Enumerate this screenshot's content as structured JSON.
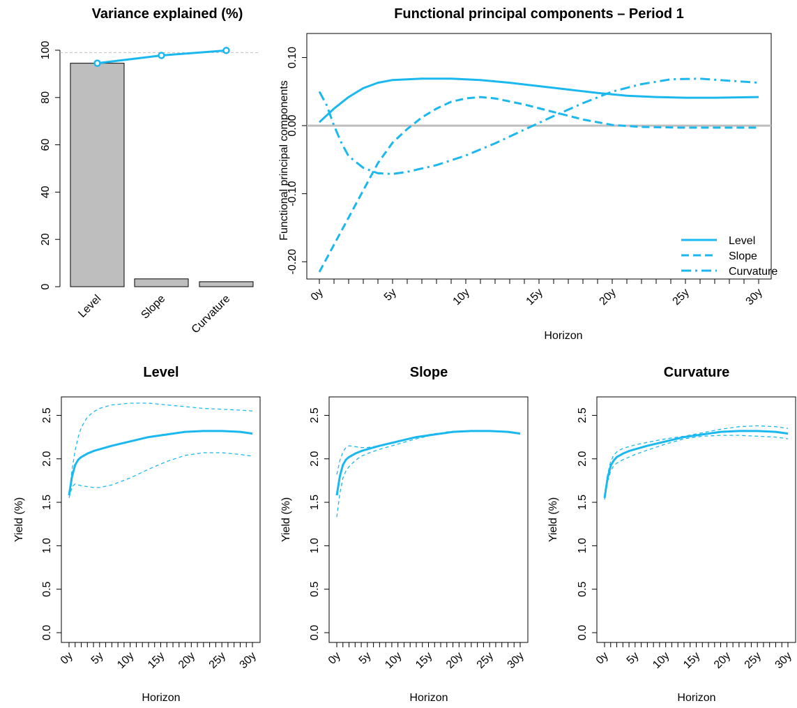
{
  "colors": {
    "accent": "#1ab8ee",
    "bar": "#bebebe",
    "zero": "#bebebe"
  },
  "chart_data": [
    {
      "id": "variance",
      "type": "bar",
      "title": "Variance explained (%)",
      "categories": [
        "Level",
        "Slope",
        "Curvature"
      ],
      "values": [
        94.5,
        3.3,
        2.1
      ],
      "cumulative": [
        94.5,
        97.8,
        99.9
      ],
      "reference_line": 99,
      "ylim": [
        0,
        100
      ],
      "yticks": [
        0,
        20,
        40,
        60,
        80,
        100
      ],
      "ytick_labels": [
        "0",
        "20",
        "40",
        "60",
        "80",
        "100"
      ],
      "grid": false
    },
    {
      "id": "fpc",
      "type": "line",
      "title": "Functional principal components – Period 1",
      "xlabel": "Horizon",
      "ylabel": "Functional principal components",
      "xlim": [
        0,
        30
      ],
      "ylim": [
        -0.21,
        0.12
      ],
      "xticks": [
        0,
        5,
        10,
        15,
        20,
        25,
        30
      ],
      "xtick_labels": [
        "0y",
        "5y",
        "10y",
        "15y",
        "20y",
        "25y",
        "30y"
      ],
      "minor_xticks": 1,
      "yticks": [
        -0.2,
        -0.1,
        0.0,
        0.1
      ],
      "ytick_labels": [
        "-0.20",
        "-0.10",
        "0.00",
        "0.10"
      ],
      "legend_position": "bottom-right",
      "zero_line": true,
      "series": [
        {
          "name": "Level",
          "dash": "solid",
          "x": [
            0,
            1,
            2,
            3,
            4,
            5,
            7,
            9,
            11,
            13,
            15,
            17,
            19,
            21,
            23,
            25,
            27,
            30
          ],
          "y": [
            0.005,
            0.025,
            0.042,
            0.055,
            0.063,
            0.067,
            0.069,
            0.069,
            0.067,
            0.063,
            0.058,
            0.053,
            0.048,
            0.044,
            0.042,
            0.041,
            0.041,
            0.042
          ]
        },
        {
          "name": "Slope",
          "dash": "dashed",
          "x": [
            0,
            1,
            2,
            3,
            4,
            5,
            6,
            7,
            8,
            9,
            10,
            11,
            12,
            14,
            16,
            18,
            20,
            22,
            25,
            28,
            30
          ],
          "y": [
            -0.215,
            -0.175,
            -0.135,
            -0.095,
            -0.055,
            -0.025,
            -0.005,
            0.012,
            0.025,
            0.035,
            0.04,
            0.042,
            0.04,
            0.031,
            0.02,
            0.009,
            0.001,
            -0.002,
            -0.003,
            -0.003,
            -0.003
          ]
        },
        {
          "name": "Curvature",
          "dash": "dashdot",
          "x": [
            0,
            0.5,
            1,
            1.5,
            2,
            3,
            4,
            5,
            6,
            8,
            10,
            12,
            14,
            16,
            18,
            20,
            22,
            24,
            26,
            28,
            30
          ],
          "y": [
            0.05,
            0.03,
            0.0,
            -0.025,
            -0.045,
            -0.062,
            -0.07,
            -0.071,
            -0.068,
            -0.058,
            -0.044,
            -0.026,
            -0.006,
            0.014,
            0.033,
            0.05,
            0.061,
            0.068,
            0.069,
            0.066,
            0.063
          ]
        }
      ]
    },
    {
      "id": "level",
      "type": "line",
      "title": "Level",
      "xlabel": "Horizon",
      "ylabel": "Yield (%)",
      "xlim": [
        0,
        30
      ],
      "ylim": [
        0,
        2.6
      ],
      "xticks": [
        0,
        5,
        10,
        15,
        20,
        25,
        30
      ],
      "xtick_labels": [
        "0y",
        "5y",
        "10y",
        "15y",
        "20y",
        "25y",
        "30y"
      ],
      "minor_xticks": 1,
      "yticks": [
        0,
        0.5,
        1.0,
        1.5,
        2.0,
        2.5
      ],
      "ytick_labels": [
        "0.0",
        "0.5",
        "1.0",
        "1.5",
        "2.0",
        "2.5"
      ],
      "series": [
        {
          "role": "mean",
          "dash": "solid",
          "x": [
            0,
            0.5,
            1,
            1.5,
            2,
            3,
            4,
            5,
            7,
            10,
            13,
            16,
            19,
            22,
            25,
            28,
            30
          ],
          "y": [
            1.58,
            1.8,
            1.93,
            1.99,
            2.02,
            2.06,
            2.09,
            2.11,
            2.15,
            2.2,
            2.25,
            2.28,
            2.31,
            2.32,
            2.32,
            2.31,
            2.29
          ]
        },
        {
          "role": "upper",
          "dash": "thin-dashed",
          "x": [
            0,
            0.5,
            1,
            1.5,
            2,
            3,
            4,
            5,
            7,
            10,
            13,
            16,
            19,
            22,
            25,
            28,
            30
          ],
          "y": [
            1.6,
            1.88,
            2.1,
            2.25,
            2.36,
            2.48,
            2.54,
            2.58,
            2.62,
            2.64,
            2.64,
            2.62,
            2.6,
            2.58,
            2.57,
            2.56,
            2.55
          ]
        },
        {
          "role": "lower",
          "dash": "thin-dashed",
          "x": [
            0,
            0.5,
            1,
            1.5,
            2,
            3,
            4,
            5,
            7,
            10,
            13,
            16,
            19,
            22,
            25,
            28,
            30
          ],
          "y": [
            1.55,
            1.68,
            1.71,
            1.7,
            1.69,
            1.68,
            1.67,
            1.67,
            1.7,
            1.78,
            1.88,
            1.97,
            2.04,
            2.07,
            2.07,
            2.05,
            2.03
          ]
        }
      ]
    },
    {
      "id": "slope",
      "type": "line",
      "title": "Slope",
      "xlabel": "Horizon",
      "ylabel": "Yield (%)",
      "xlim": [
        0,
        30
      ],
      "ylim": [
        0,
        2.6
      ],
      "xticks": [
        0,
        5,
        10,
        15,
        20,
        25,
        30
      ],
      "xtick_labels": [
        "0y",
        "5y",
        "10y",
        "15y",
        "20y",
        "25y",
        "30y"
      ],
      "minor_xticks": 1,
      "yticks": [
        0,
        0.5,
        1.0,
        1.5,
        2.0,
        2.5
      ],
      "ytick_labels": [
        "0.0",
        "0.5",
        "1.0",
        "1.5",
        "2.0",
        "2.5"
      ],
      "series": [
        {
          "role": "mean",
          "dash": "solid",
          "x": [
            0,
            0.5,
            1,
            1.5,
            2,
            3,
            4,
            5,
            7,
            10,
            13,
            16,
            19,
            22,
            25,
            28,
            30
          ],
          "y": [
            1.58,
            1.8,
            1.93,
            1.99,
            2.02,
            2.06,
            2.09,
            2.11,
            2.15,
            2.2,
            2.25,
            2.28,
            2.31,
            2.32,
            2.32,
            2.31,
            2.29
          ]
        },
        {
          "role": "upper",
          "dash": "thin-dashed",
          "x": [
            0,
            0.5,
            1,
            1.5,
            2,
            3,
            4,
            5,
            7,
            10,
            13,
            16,
            18,
            20,
            22,
            25,
            28,
            30
          ],
          "y": [
            1.82,
            1.98,
            2.08,
            2.13,
            2.15,
            2.14,
            2.13,
            2.13,
            2.15,
            2.2,
            2.25,
            2.29,
            2.3,
            2.31,
            2.32,
            2.32,
            2.31,
            2.29
          ]
        },
        {
          "role": "lower",
          "dash": "thin-dashed",
          "x": [
            0,
            0.5,
            1,
            1.5,
            2,
            3,
            4,
            5,
            7,
            10,
            13,
            16,
            18,
            20,
            22,
            25,
            28,
            30
          ],
          "y": [
            1.33,
            1.6,
            1.78,
            1.86,
            1.91,
            1.98,
            2.03,
            2.06,
            2.11,
            2.17,
            2.23,
            2.28,
            2.31,
            2.32,
            2.32,
            2.32,
            2.31,
            2.29
          ]
        }
      ]
    },
    {
      "id": "curvature",
      "type": "line",
      "title": "Curvature",
      "xlabel": "Horizon",
      "ylabel": "Yield (%)",
      "xlim": [
        0,
        30
      ],
      "ylim": [
        0,
        2.6
      ],
      "xticks": [
        0,
        5,
        10,
        15,
        20,
        25,
        30
      ],
      "xtick_labels": [
        "0y",
        "5y",
        "10y",
        "15y",
        "20y",
        "25y",
        "30y"
      ],
      "minor_xticks": 1,
      "yticks": [
        0,
        0.5,
        1.0,
        1.5,
        2.0,
        2.5
      ],
      "ytick_labels": [
        "0.0",
        "0.5",
        "1.0",
        "1.5",
        "2.0",
        "2.5"
      ],
      "series": [
        {
          "role": "mean",
          "dash": "solid",
          "x": [
            0,
            0.5,
            1,
            1.5,
            2,
            3,
            4,
            5,
            7,
            10,
            13,
            16,
            19,
            22,
            25,
            28,
            30
          ],
          "y": [
            1.55,
            1.78,
            1.92,
            1.98,
            2.02,
            2.06,
            2.09,
            2.11,
            2.15,
            2.2,
            2.25,
            2.28,
            2.31,
            2.32,
            2.32,
            2.31,
            2.29
          ]
        },
        {
          "role": "upper",
          "dash": "thin-dashed",
          "x": [
            0,
            0.5,
            1,
            1.5,
            2,
            3,
            4,
            5,
            7,
            10,
            13,
            16,
            19,
            22,
            25,
            28,
            30
          ],
          "y": [
            1.57,
            1.82,
            1.97,
            2.04,
            2.08,
            2.12,
            2.14,
            2.16,
            2.19,
            2.23,
            2.26,
            2.3,
            2.34,
            2.37,
            2.38,
            2.37,
            2.35
          ]
        },
        {
          "role": "lower",
          "dash": "thin-dashed",
          "x": [
            0,
            0.5,
            1,
            1.5,
            2,
            3,
            4,
            5,
            7,
            10,
            13,
            16,
            19,
            22,
            25,
            28,
            30
          ],
          "y": [
            1.53,
            1.74,
            1.86,
            1.92,
            1.95,
            1.99,
            2.02,
            2.05,
            2.1,
            2.17,
            2.23,
            2.26,
            2.27,
            2.27,
            2.26,
            2.25,
            2.23
          ]
        }
      ]
    }
  ]
}
